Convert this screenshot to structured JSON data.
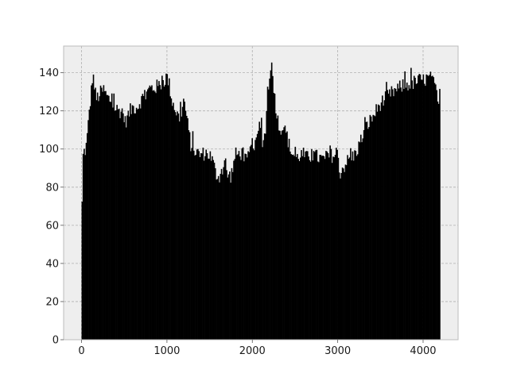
{
  "chart_data": {
    "type": "bar",
    "title": "",
    "xlabel": "",
    "ylabel": "",
    "xlim": [
      -210,
      4410
    ],
    "ylim": [
      0,
      154
    ],
    "grid": true,
    "legend": "none",
    "x_ticks": [
      0,
      1000,
      2000,
      3000,
      4000
    ],
    "y_ticks": [
      0,
      20,
      40,
      60,
      80,
      100,
      120,
      140
    ],
    "x_range": [
      0,
      4200
    ],
    "bin_width": 12,
    "colors": {
      "bars": "#000000",
      "plot_bg": "#eeeeee",
      "grid": "#b0b0b0"
    },
    "envelope": [
      [
        0,
        0
      ],
      [
        5,
        68
      ],
      [
        10,
        90
      ],
      [
        20,
        98
      ],
      [
        50,
        100
      ],
      [
        70,
        108
      ],
      [
        90,
        120
      ],
      [
        110,
        128
      ],
      [
        130,
        140
      ],
      [
        150,
        133
      ],
      [
        170,
        126
      ],
      [
        200,
        128
      ],
      [
        230,
        130
      ],
      [
        260,
        131
      ],
      [
        300,
        127
      ],
      [
        350,
        125
      ],
      [
        400,
        121
      ],
      [
        450,
        120
      ],
      [
        480,
        120
      ],
      [
        510,
        114
      ],
      [
        540,
        117
      ],
      [
        570,
        120
      ],
      [
        600,
        122
      ],
      [
        650,
        122
      ],
      [
        700,
        126
      ],
      [
        750,
        128
      ],
      [
        800,
        132
      ],
      [
        850,
        132
      ],
      [
        900,
        133
      ],
      [
        950,
        135
      ],
      [
        1000,
        138
      ],
      [
        1030,
        133
      ],
      [
        1060,
        125
      ],
      [
        1090,
        122
      ],
      [
        1120,
        118
      ],
      [
        1150,
        116
      ],
      [
        1180,
        122
      ],
      [
        1200,
        126
      ],
      [
        1220,
        120
      ],
      [
        1250,
        110
      ],
      [
        1280,
        102
      ],
      [
        1310,
        100
      ],
      [
        1350,
        98
      ],
      [
        1400,
        97
      ],
      [
        1450,
        98
      ],
      [
        1500,
        97
      ],
      [
        1540,
        93
      ],
      [
        1570,
        87
      ],
      [
        1600,
        86
      ],
      [
        1630,
        86
      ],
      [
        1660,
        90
      ],
      [
        1680,
        95
      ],
      [
        1700,
        87
      ],
      [
        1720,
        86
      ],
      [
        1750,
        86
      ],
      [
        1780,
        92
      ],
      [
        1800,
        97
      ],
      [
        1830,
        97
      ],
      [
        1860,
        98
      ],
      [
        1900,
        97
      ],
      [
        1930,
        93
      ],
      [
        1950,
        95
      ],
      [
        1980,
        100
      ],
      [
        2010,
        104
      ],
      [
        2040,
        100
      ],
      [
        2060,
        105
      ],
      [
        2080,
        112
      ],
      [
        2100,
        112
      ],
      [
        2120,
        104
      ],
      [
        2150,
        108
      ],
      [
        2170,
        122
      ],
      [
        2190,
        133
      ],
      [
        2210,
        145
      ],
      [
        2230,
        142
      ],
      [
        2250,
        133
      ],
      [
        2270,
        124
      ],
      [
        2290,
        117
      ],
      [
        2310,
        112
      ],
      [
        2350,
        111
      ],
      [
        2400,
        108
      ],
      [
        2440,
        100
      ],
      [
        2480,
        97
      ],
      [
        2520,
        95
      ],
      [
        2560,
        97
      ],
      [
        2600,
        97
      ],
      [
        2650,
        95
      ],
      [
        2700,
        97
      ],
      [
        2750,
        96
      ],
      [
        2800,
        95
      ],
      [
        2850,
        94
      ],
      [
        2900,
        96
      ],
      [
        2950,
        97
      ],
      [
        2980,
        96
      ],
      [
        3000,
        90
      ],
      [
        3030,
        88
      ],
      [
        3060,
        90
      ],
      [
        3100,
        93
      ],
      [
        3150,
        95
      ],
      [
        3200,
        97
      ],
      [
        3250,
        102
      ],
      [
        3300,
        108
      ],
      [
        3350,
        113
      ],
      [
        3400,
        116
      ],
      [
        3450,
        120
      ],
      [
        3500,
        124
      ],
      [
        3550,
        126
      ],
      [
        3600,
        128
      ],
      [
        3650,
        130
      ],
      [
        3700,
        131
      ],
      [
        3750,
        133
      ],
      [
        3800,
        134
      ],
      [
        3850,
        134
      ],
      [
        3900,
        135
      ],
      [
        3950,
        136
      ],
      [
        4000,
        136
      ],
      [
        4050,
        137
      ],
      [
        4100,
        137
      ],
      [
        4150,
        130
      ],
      [
        4180,
        122
      ],
      [
        4200,
        124
      ]
    ]
  }
}
